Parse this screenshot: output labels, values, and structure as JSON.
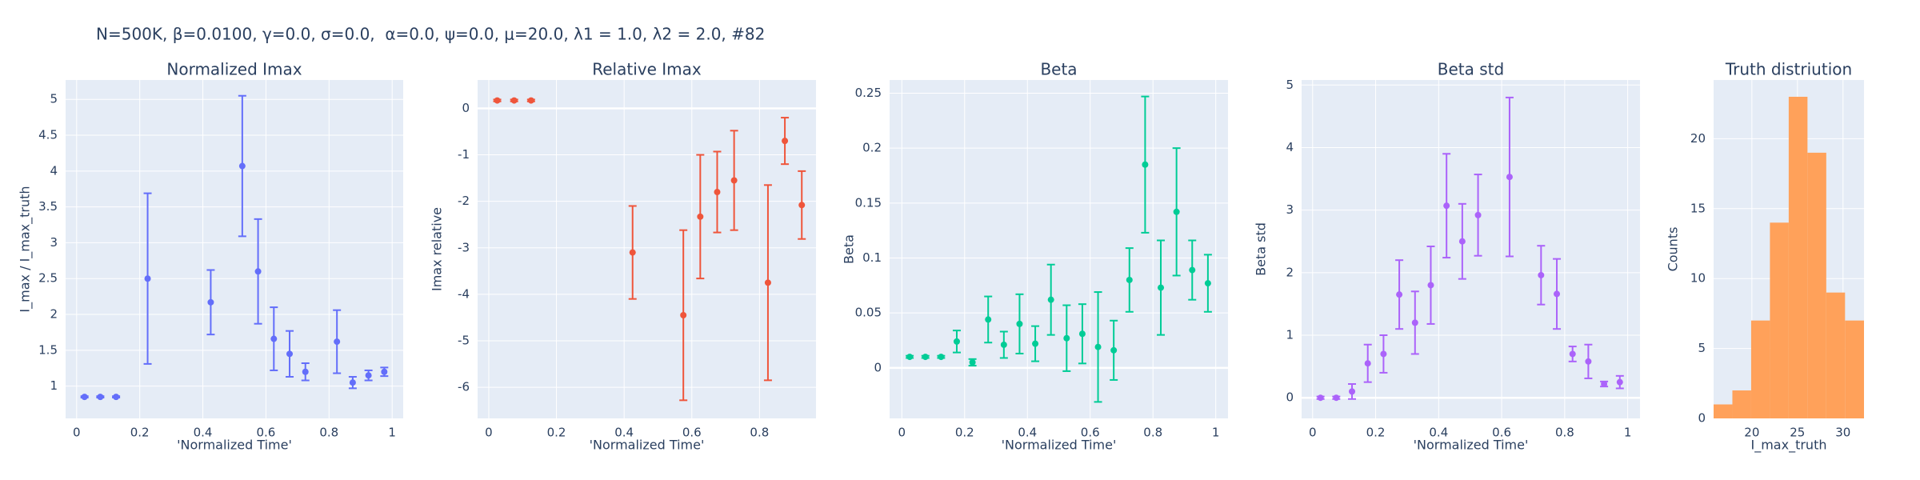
{
  "title": "N=500K, β=0.0100, γ=0.0, σ=0.0,  α=0.0, ψ=0.0, μ=20.0, λ1 = 1.0, λ2 = 2.0, #82",
  "chart_data": [
    {
      "type": "scatter",
      "title": "Normalized Imax",
      "x_label": "'Normalized Time'",
      "y_label": "I_max / I_max_truth",
      "color": "#636efa",
      "x": [
        0.025,
        0.075,
        0.125,
        0.225,
        0.425,
        0.525,
        0.575,
        0.625,
        0.675,
        0.725,
        0.825,
        0.875,
        0.925,
        0.975
      ],
      "values": [
        0.85,
        0.85,
        0.85,
        2.5,
        2.17,
        4.07,
        2.6,
        1.66,
        1.45,
        1.2,
        1.62,
        1.05,
        1.15,
        1.2
      ],
      "errors": [
        0.01,
        0.01,
        0.01,
        1.19,
        0.45,
        0.98,
        0.73,
        0.44,
        0.32,
        0.12,
        0.44,
        0.08,
        0.07,
        0.06
      ],
      "xlim": [
        -0.035,
        1.035
      ],
      "xticks": [
        0,
        0.2,
        0.4,
        0.6,
        0.8,
        1
      ],
      "ylim": [
        0.55,
        5.27
      ],
      "yticks": [
        1,
        1.5,
        2,
        2.5,
        3,
        3.5,
        4,
        4.5,
        5
      ],
      "grid": true
    },
    {
      "type": "scatter",
      "title": "Relative Imax",
      "x_label": "'Normalized Time'",
      "y_label": "Imax relative",
      "color": "#EF553B",
      "x": [
        0.025,
        0.075,
        0.125,
        0.425,
        0.575,
        0.625,
        0.675,
        0.725,
        0.825,
        0.875,
        0.925
      ],
      "values": [
        0.17,
        0.17,
        0.17,
        -3.1,
        -4.45,
        -2.33,
        -1.8,
        -1.55,
        -3.75,
        -0.7,
        -2.08
      ],
      "errors": [
        0.02,
        0.02,
        0.02,
        1.0,
        1.83,
        1.33,
        0.87,
        1.07,
        2.1,
        0.5,
        0.73
      ],
      "xlim": [
        -0.033,
        0.967
      ],
      "xticks": [
        0,
        0.2,
        0.4,
        0.6,
        0.8
      ],
      "ylim": [
        -6.67,
        0.61
      ],
      "yticks": [
        0,
        -1,
        -2,
        -3,
        -4,
        -5,
        -6
      ],
      "grid": true
    },
    {
      "type": "scatter",
      "title": "Beta",
      "x_label": "'Normalized Time'",
      "y_label": "Beta",
      "color": "#00cc96",
      "x": [
        0.025,
        0.075,
        0.125,
        0.175,
        0.225,
        0.275,
        0.325,
        0.375,
        0.425,
        0.475,
        0.525,
        0.575,
        0.625,
        0.675,
        0.725,
        0.775,
        0.825,
        0.875,
        0.925,
        0.975
      ],
      "values": [
        0.01,
        0.01,
        0.01,
        0.024,
        0.005,
        0.044,
        0.021,
        0.04,
        0.022,
        0.062,
        0.027,
        0.031,
        0.019,
        0.016,
        0.08,
        0.185,
        0.073,
        0.142,
        0.089,
        0.077
      ],
      "errors": [
        0.001,
        0.001,
        0.001,
        0.01,
        0.003,
        0.021,
        0.012,
        0.027,
        0.016,
        0.032,
        0.03,
        0.027,
        0.05,
        0.027,
        0.029,
        0.062,
        0.043,
        0.058,
        0.027,
        0.026
      ],
      "xlim": [
        -0.039,
        1.039
      ],
      "xticks": [
        0,
        0.2,
        0.4,
        0.6,
        0.8,
        1
      ],
      "ylim": [
        -0.046,
        0.262
      ],
      "yticks": [
        0,
        0.05,
        0.1,
        0.15,
        0.2,
        0.25
      ],
      "grid": true
    },
    {
      "type": "scatter",
      "title": "Beta std",
      "x_label": "'Normalized Time'",
      "y_label": "Beta std",
      "color": "#ab63fa",
      "x": [
        0.025,
        0.075,
        0.125,
        0.175,
        0.225,
        0.275,
        0.325,
        0.375,
        0.425,
        0.475,
        0.525,
        0.625,
        0.725,
        0.775,
        0.825,
        0.875,
        0.925,
        0.975
      ],
      "values": [
        0,
        0,
        0.1,
        0.55,
        0.7,
        1.65,
        1.2,
        1.8,
        3.07,
        2.5,
        2.92,
        3.53,
        1.96,
        1.66,
        0.7,
        0.58,
        0.22,
        0.25
      ],
      "errors": [
        0.02,
        0.02,
        0.12,
        0.3,
        0.3,
        0.55,
        0.5,
        0.62,
        0.83,
        0.6,
        0.65,
        1.27,
        0.47,
        0.56,
        0.12,
        0.27,
        0.04,
        0.1
      ],
      "xlim": [
        -0.035,
        1.039
      ],
      "xticks": [
        0,
        0.2,
        0.4,
        0.6,
        0.8,
        1
      ],
      "ylim": [
        -0.33,
        5.08
      ],
      "yticks": [
        0,
        1,
        2,
        3,
        4,
        5
      ],
      "grid": true
    },
    {
      "type": "histogram",
      "title": "Truth distriution",
      "x_label": "I_max_truth",
      "y_label": "Counts",
      "color": "#FFA15A",
      "bins": [
        15.8,
        17.86,
        19.92,
        21.98,
        24.04,
        26.1,
        28.16,
        30.22,
        32.3
      ],
      "values": [
        1,
        2,
        7,
        14,
        23,
        19,
        9,
        7
      ],
      "xlim": [
        15.8,
        32.3
      ],
      "xticks": [
        20,
        25,
        30
      ],
      "ylim": [
        0,
        24.2
      ],
      "yticks": [
        0,
        5,
        10,
        15,
        20
      ],
      "grid": true
    }
  ]
}
